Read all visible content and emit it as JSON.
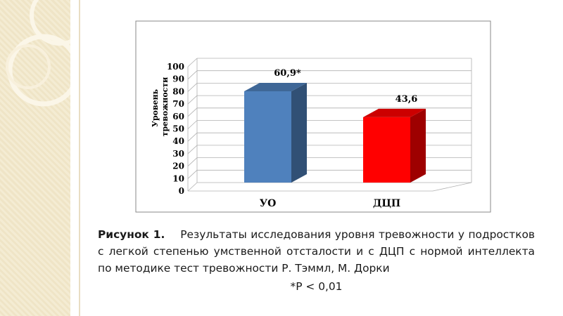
{
  "chart_data": {
    "type": "bar",
    "categories": [
      "УО",
      "ДЦП"
    ],
    "values": [
      60.9,
      43.6
    ],
    "data_labels": [
      "60,9*",
      "43,6"
    ],
    "bar_colors": [
      "#4f81bd",
      "#ff0000"
    ],
    "ylabel_lines": [
      "Уровень",
      "тревожности"
    ],
    "ylim": [
      0,
      100
    ],
    "yticks": [
      "0",
      "10",
      "20",
      "30",
      "40",
      "50",
      "60",
      "70",
      "80",
      "90",
      "100"
    ],
    "grid": true,
    "legend": "none"
  },
  "caption": {
    "label": "Рисунок 1.",
    "text": "Результаты исследования уровня тревожности у подростков с легкой степенью умственной отсталости и с ДЦП с нормой интеллекта по методике тест тревожности Р. Тэммл, М. Дорки",
    "note": "*Р < 0,01"
  }
}
